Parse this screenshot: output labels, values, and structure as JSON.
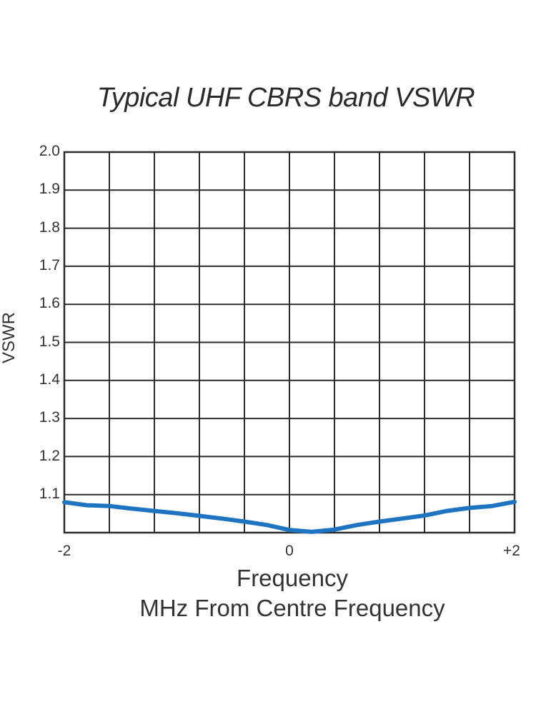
{
  "chart_data": {
    "type": "line",
    "title": "Typical UHF CBRS band VSWR",
    "xlabel": "Frequency",
    "xlabel_sub": "MHz From Centre Frequency",
    "ylabel": "VSWR",
    "xlim": [
      -2,
      2
    ],
    "ylim": [
      1.0,
      2.0
    ],
    "grid": true,
    "x_tick_labels": [
      "-2",
      "0",
      "+2"
    ],
    "y_tick_labels": [
      "2.0",
      "1.9",
      "1.8",
      "1.7",
      "1.6",
      "1.5",
      "1.4",
      "1.3",
      "1.2",
      "1.1"
    ],
    "series": [
      {
        "name": "VSWR",
        "color": "#1f74c2",
        "x": [
          -2.0,
          -1.8,
          -1.6,
          -1.4,
          -1.2,
          -1.0,
          -0.8,
          -0.6,
          -0.4,
          -0.2,
          0.0,
          0.2,
          0.4,
          0.6,
          0.8,
          1.0,
          1.2,
          1.4,
          1.6,
          1.8,
          2.0
        ],
        "values": [
          1.08,
          1.072,
          1.07,
          1.063,
          1.057,
          1.051,
          1.044,
          1.037,
          1.029,
          1.02,
          1.007,
          1.002,
          1.008,
          1.02,
          1.029,
          1.037,
          1.045,
          1.057,
          1.065,
          1.07,
          1.081
        ]
      }
    ]
  },
  "labels": {
    "title": "Typical UHF CBRS band VSWR",
    "ylabel": "VSWR",
    "xlabel": "Frequency",
    "xlabel_sub": "MHz From Centre Frequency",
    "yticks": [
      "2.0",
      "1.9",
      "1.8",
      "1.7",
      "1.6",
      "1.5",
      "1.4",
      "1.3",
      "1.2",
      "1.1"
    ],
    "xticks": [
      "-2",
      "0",
      "+2"
    ]
  }
}
